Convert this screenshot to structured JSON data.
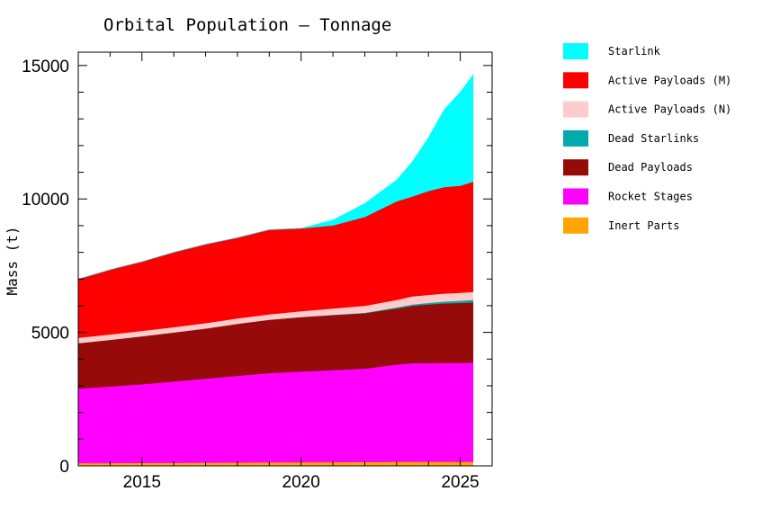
{
  "chart_data": {
    "type": "area",
    "stacked": true,
    "title": "Orbital Population – Tonnage",
    "xlabel": "",
    "ylabel": "Mass (t)",
    "xlim": [
      2013.0,
      2026.0
    ],
    "ylim": [
      0,
      15500
    ],
    "x_ticks": [
      2015,
      2020,
      2025
    ],
    "x_tick_labels": [
      "2015",
      "2020",
      "2025"
    ],
    "y_ticks": [
      0,
      5000,
      10000,
      15000
    ],
    "y_tick_labels": [
      "0",
      "5000",
      "10000",
      "15000"
    ],
    "grid": false,
    "legend_position": "right",
    "x": [
      2013.0,
      2014.0,
      2015.0,
      2016.0,
      2017.0,
      2018.0,
      2019.0,
      2020.0,
      2021.0,
      2022.0,
      2023.0,
      2023.5,
      2024.0,
      2024.5,
      2025.0,
      2025.4
    ],
    "series": [
      {
        "name": "Inert Parts",
        "color": "#ffa500",
        "values": [
          100,
          105,
          110,
          115,
          120,
          125,
          130,
          135,
          140,
          145,
          150,
          150,
          150,
          150,
          150,
          150
        ]
      },
      {
        "name": "Rocket Stages",
        "color": "#ff00ff",
        "values": [
          2800,
          2870,
          2950,
          3050,
          3150,
          3250,
          3350,
          3400,
          3450,
          3500,
          3650,
          3700,
          3700,
          3710,
          3710,
          3730
        ]
      },
      {
        "name": "Dead Payloads",
        "color": "#960a0a",
        "values": [
          1700,
          1750,
          1800,
          1835,
          1880,
          1950,
          2000,
          2045,
          2060,
          2075,
          2100,
          2150,
          2200,
          2230,
          2250,
          2250
        ]
      },
      {
        "name": "Dead Starlinks",
        "color": "#00aaaa",
        "values": [
          0,
          0,
          0,
          0,
          0,
          0,
          0,
          0,
          10,
          20,
          40,
          50,
          60,
          70,
          80,
          90
        ]
      },
      {
        "name": "Active Payloads (N)",
        "color": "#ffcccc",
        "values": [
          200,
          200,
          200,
          200,
          200,
          200,
          200,
          220,
          240,
          260,
          280,
          300,
          300,
          300,
          300,
          300
        ]
      },
      {
        "name": "Active Payloads (M)",
        "color": "#ff0000",
        "values": [
          2200,
          2425,
          2590,
          2800,
          2950,
          3025,
          3170,
          3100,
          3110,
          3330,
          3690,
          3750,
          3890,
          3990,
          4010,
          4130
        ]
      },
      {
        "name": "Starlink",
        "color": "#00ffff",
        "values": [
          0,
          0,
          0,
          0,
          0,
          0,
          0,
          0,
          200,
          500,
          800,
          1300,
          2000,
          2900,
          3500,
          4000
        ]
      }
    ]
  }
}
